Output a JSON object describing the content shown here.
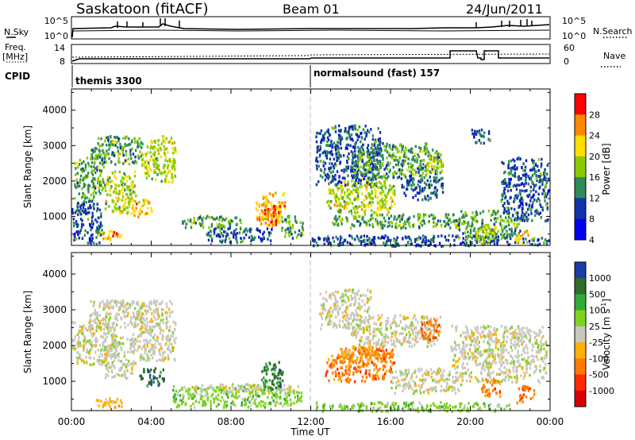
{
  "header": {
    "title": "Saskatoon (fitACF)",
    "beam": "Beam 01",
    "date": "24/Jun/2011"
  },
  "top_panels": {
    "nsky_label": "N.Sky",
    "nsky_ticks": [
      "10^5",
      "10^0"
    ],
    "nsearch_label": "N.Search",
    "nsearch_ticks": [
      "10^5",
      "10^0"
    ],
    "freq_label": "Freq.",
    "freq_unit": "[MHz]",
    "freq_ticks": [
      "14",
      "8"
    ],
    "nave_label": "Nave",
    "nave_ticks": [
      "60",
      "0"
    ],
    "cpid_label": "CPID",
    "cpid_entries": [
      {
        "text": "themis 3300",
        "start_hour": 0
      },
      {
        "text": "normalsound (fast) 157",
        "start_hour": 12.0
      }
    ]
  },
  "chart_data": [
    {
      "type": "heatmap",
      "title": "",
      "xlabel": "Time UT",
      "ylabel": "Slant Range [km]",
      "xlim": [
        0,
        24
      ],
      "ylim": [
        180,
        4600
      ],
      "x_ticks": [
        "00:00",
        "04:00",
        "08:00",
        "12:00",
        "16:00",
        "20:00",
        "00:00"
      ],
      "y_ticks": [
        1000,
        2000,
        3000,
        4000
      ],
      "colorbar": {
        "label": "Power [dB]",
        "ticks": [
          "28",
          "24",
          "20",
          "16",
          "12",
          "8",
          "4"
        ],
        "colors": [
          "#ff0000",
          "#ff8800",
          "#ffdd00",
          "#88cc00",
          "#2e8b57",
          "#1133aa",
          "#0000ee"
        ]
      },
      "echo_regions": [
        {
          "t0": 0.1,
          "t1": 1.6,
          "r0": 1500,
          "r1": 2700,
          "level": 2
        },
        {
          "t0": 0.8,
          "t1": 3.6,
          "r0": 2500,
          "r1": 3300,
          "level": 2
        },
        {
          "t0": 1.6,
          "t1": 3.2,
          "r0": 1100,
          "r1": 2300,
          "level": 3
        },
        {
          "t0": 3.0,
          "t1": 4.0,
          "r0": 1000,
          "r1": 1500,
          "level": 4
        },
        {
          "t0": 3.5,
          "t1": 5.2,
          "r0": 2000,
          "r1": 3300,
          "level": 3
        },
        {
          "t0": 1.2,
          "t1": 2.5,
          "r0": 350,
          "r1": 620,
          "level": 4
        },
        {
          "t0": 0.0,
          "t1": 1.5,
          "r0": 250,
          "r1": 1500,
          "level": 1
        },
        {
          "t0": 5.5,
          "t1": 8.5,
          "r0": 700,
          "r1": 1050,
          "level": 2
        },
        {
          "t0": 6.5,
          "t1": 10.0,
          "r0": 300,
          "r1": 700,
          "level": 1
        },
        {
          "t0": 9.2,
          "t1": 10.7,
          "r0": 750,
          "r1": 1700,
          "level": 4
        },
        {
          "t0": 9.5,
          "t1": 10.5,
          "r0": 850,
          "r1": 1250,
          "level": 5
        },
        {
          "t0": 10.5,
          "t1": 11.6,
          "r0": 400,
          "r1": 1050,
          "level": 2
        },
        {
          "t0": 12.0,
          "t1": 24.0,
          "r0": 190,
          "r1": 500,
          "level": 1
        },
        {
          "t0": 12.7,
          "t1": 16.2,
          "r0": 1100,
          "r1": 2100,
          "level": 3
        },
        {
          "t0": 12.2,
          "t1": 15.5,
          "r0": 1900,
          "r1": 3600,
          "level": 1
        },
        {
          "t0": 14.0,
          "t1": 18.5,
          "r0": 2100,
          "r1": 3100,
          "level": 2
        },
        {
          "t0": 13.0,
          "t1": 19.5,
          "r0": 700,
          "r1": 1100,
          "level": 2
        },
        {
          "t0": 16.5,
          "t1": 18.6,
          "r0": 1500,
          "r1": 2200,
          "level": 1
        },
        {
          "t0": 17.7,
          "t1": 18.6,
          "r0": 2200,
          "r1": 2800,
          "level": 3
        },
        {
          "t0": 19.3,
          "t1": 22.5,
          "r0": 400,
          "r1": 1200,
          "level": 2
        },
        {
          "t0": 20.2,
          "t1": 21.3,
          "r0": 250,
          "r1": 800,
          "level": 3
        },
        {
          "t0": 21.5,
          "t1": 23.9,
          "r0": 900,
          "r1": 2700,
          "level": 1
        },
        {
          "t0": 22.2,
          "t1": 22.9,
          "r0": 280,
          "r1": 650,
          "level": 4
        },
        {
          "t0": 20.0,
          "t1": 21.0,
          "r0": 3100,
          "r1": 3500,
          "level": 1
        }
      ]
    },
    {
      "type": "heatmap",
      "title": "",
      "xlabel": "Time UT",
      "ylabel": "Slant Range [km]",
      "xlim": [
        0,
        24
      ],
      "ylim": [
        180,
        4600
      ],
      "x_ticks": [
        "00:00",
        "04:00",
        "08:00",
        "12:00",
        "16:00",
        "20:00",
        "00:00"
      ],
      "y_ticks": [
        1000,
        2000,
        3000,
        4000
      ],
      "colorbar": {
        "label": "Velocity [m s",
        "label_sup": "-1",
        "label_end": "]",
        "ticks": [
          "1000",
          "500",
          "100",
          "25",
          "-25",
          "-100",
          "-500",
          "-1000"
        ],
        "colors": [
          "#1a3ea8",
          "#2d6e2d",
          "#33aa33",
          "#7ed321",
          "#c8c8c0",
          "#ffb000",
          "#ff7a00",
          "#ff2a00",
          "#d80000"
        ]
      },
      "echo_regions": [
        {
          "t0": 0.0,
          "t1": 2.2,
          "r0": 1500,
          "r1": 2700,
          "level": 4
        },
        {
          "t0": 0.8,
          "t1": 3.6,
          "r0": 2500,
          "r1": 3300,
          "level": 4
        },
        {
          "t0": 1.6,
          "t1": 3.2,
          "r0": 1100,
          "r1": 2300,
          "level": 4
        },
        {
          "t0": 3.0,
          "t1": 5.2,
          "r0": 1600,
          "r1": 3300,
          "level": 4
        },
        {
          "t0": 3.4,
          "t1": 4.6,
          "r0": 900,
          "r1": 1400,
          "level": 1
        },
        {
          "t0": 1.2,
          "t1": 2.5,
          "r0": 300,
          "r1": 600,
          "level": 5
        },
        {
          "t0": 5.0,
          "t1": 11.5,
          "r0": 300,
          "r1": 900,
          "level": 3
        },
        {
          "t0": 5.5,
          "t1": 11.0,
          "r0": 700,
          "r1": 950,
          "level": 4
        },
        {
          "t0": 9.5,
          "t1": 10.6,
          "r0": 800,
          "r1": 1600,
          "level": 1
        },
        {
          "t0": 12.2,
          "t1": 22.0,
          "r0": 190,
          "r1": 450,
          "level": 3
        },
        {
          "t0": 12.7,
          "t1": 16.2,
          "r0": 1000,
          "r1": 2000,
          "level": 6
        },
        {
          "t0": 13.5,
          "t1": 15.5,
          "r0": 1600,
          "r1": 2000,
          "level": 5
        },
        {
          "t0": 12.4,
          "t1": 15.0,
          "r0": 2500,
          "r1": 3600,
          "level": 4
        },
        {
          "t0": 14.0,
          "t1": 18.5,
          "r0": 2000,
          "r1": 2900,
          "level": 4
        },
        {
          "t0": 17.4,
          "t1": 18.4,
          "r0": 2200,
          "r1": 2800,
          "level": 6
        },
        {
          "t0": 16.0,
          "t1": 19.5,
          "r0": 700,
          "r1": 1400,
          "level": 4
        },
        {
          "t0": 19.0,
          "t1": 23.8,
          "r0": 1000,
          "r1": 2600,
          "level": 4
        },
        {
          "t0": 20.5,
          "t1": 21.5,
          "r0": 600,
          "r1": 1100,
          "level": 6
        },
        {
          "t0": 22.3,
          "t1": 23.2,
          "r0": 400,
          "r1": 900,
          "level": 6
        }
      ]
    }
  ],
  "colors": {
    "axis": "#000000",
    "noon_line": "#bbbbbb"
  }
}
